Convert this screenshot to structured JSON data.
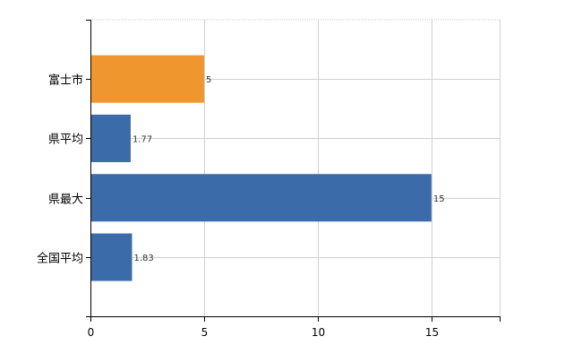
{
  "chart_data": {
    "type": "bar",
    "orientation": "horizontal",
    "categories": [
      "富士市",
      "県平均",
      "県最大",
      "全国平均"
    ],
    "values": [
      5,
      1.77,
      15,
      1.83
    ],
    "value_labels": [
      "5",
      "1.77",
      "15",
      "1.83"
    ],
    "bar_colors": [
      "#f0962e",
      "#3b6ba8",
      "#3b6ba8",
      "#3b6ba8"
    ],
    "xlim": [
      0,
      18
    ],
    "xticks": [
      0,
      5,
      10,
      15
    ],
    "grid": true,
    "legend": "none",
    "title": "",
    "xlabel": "",
    "ylabel": ""
  }
}
